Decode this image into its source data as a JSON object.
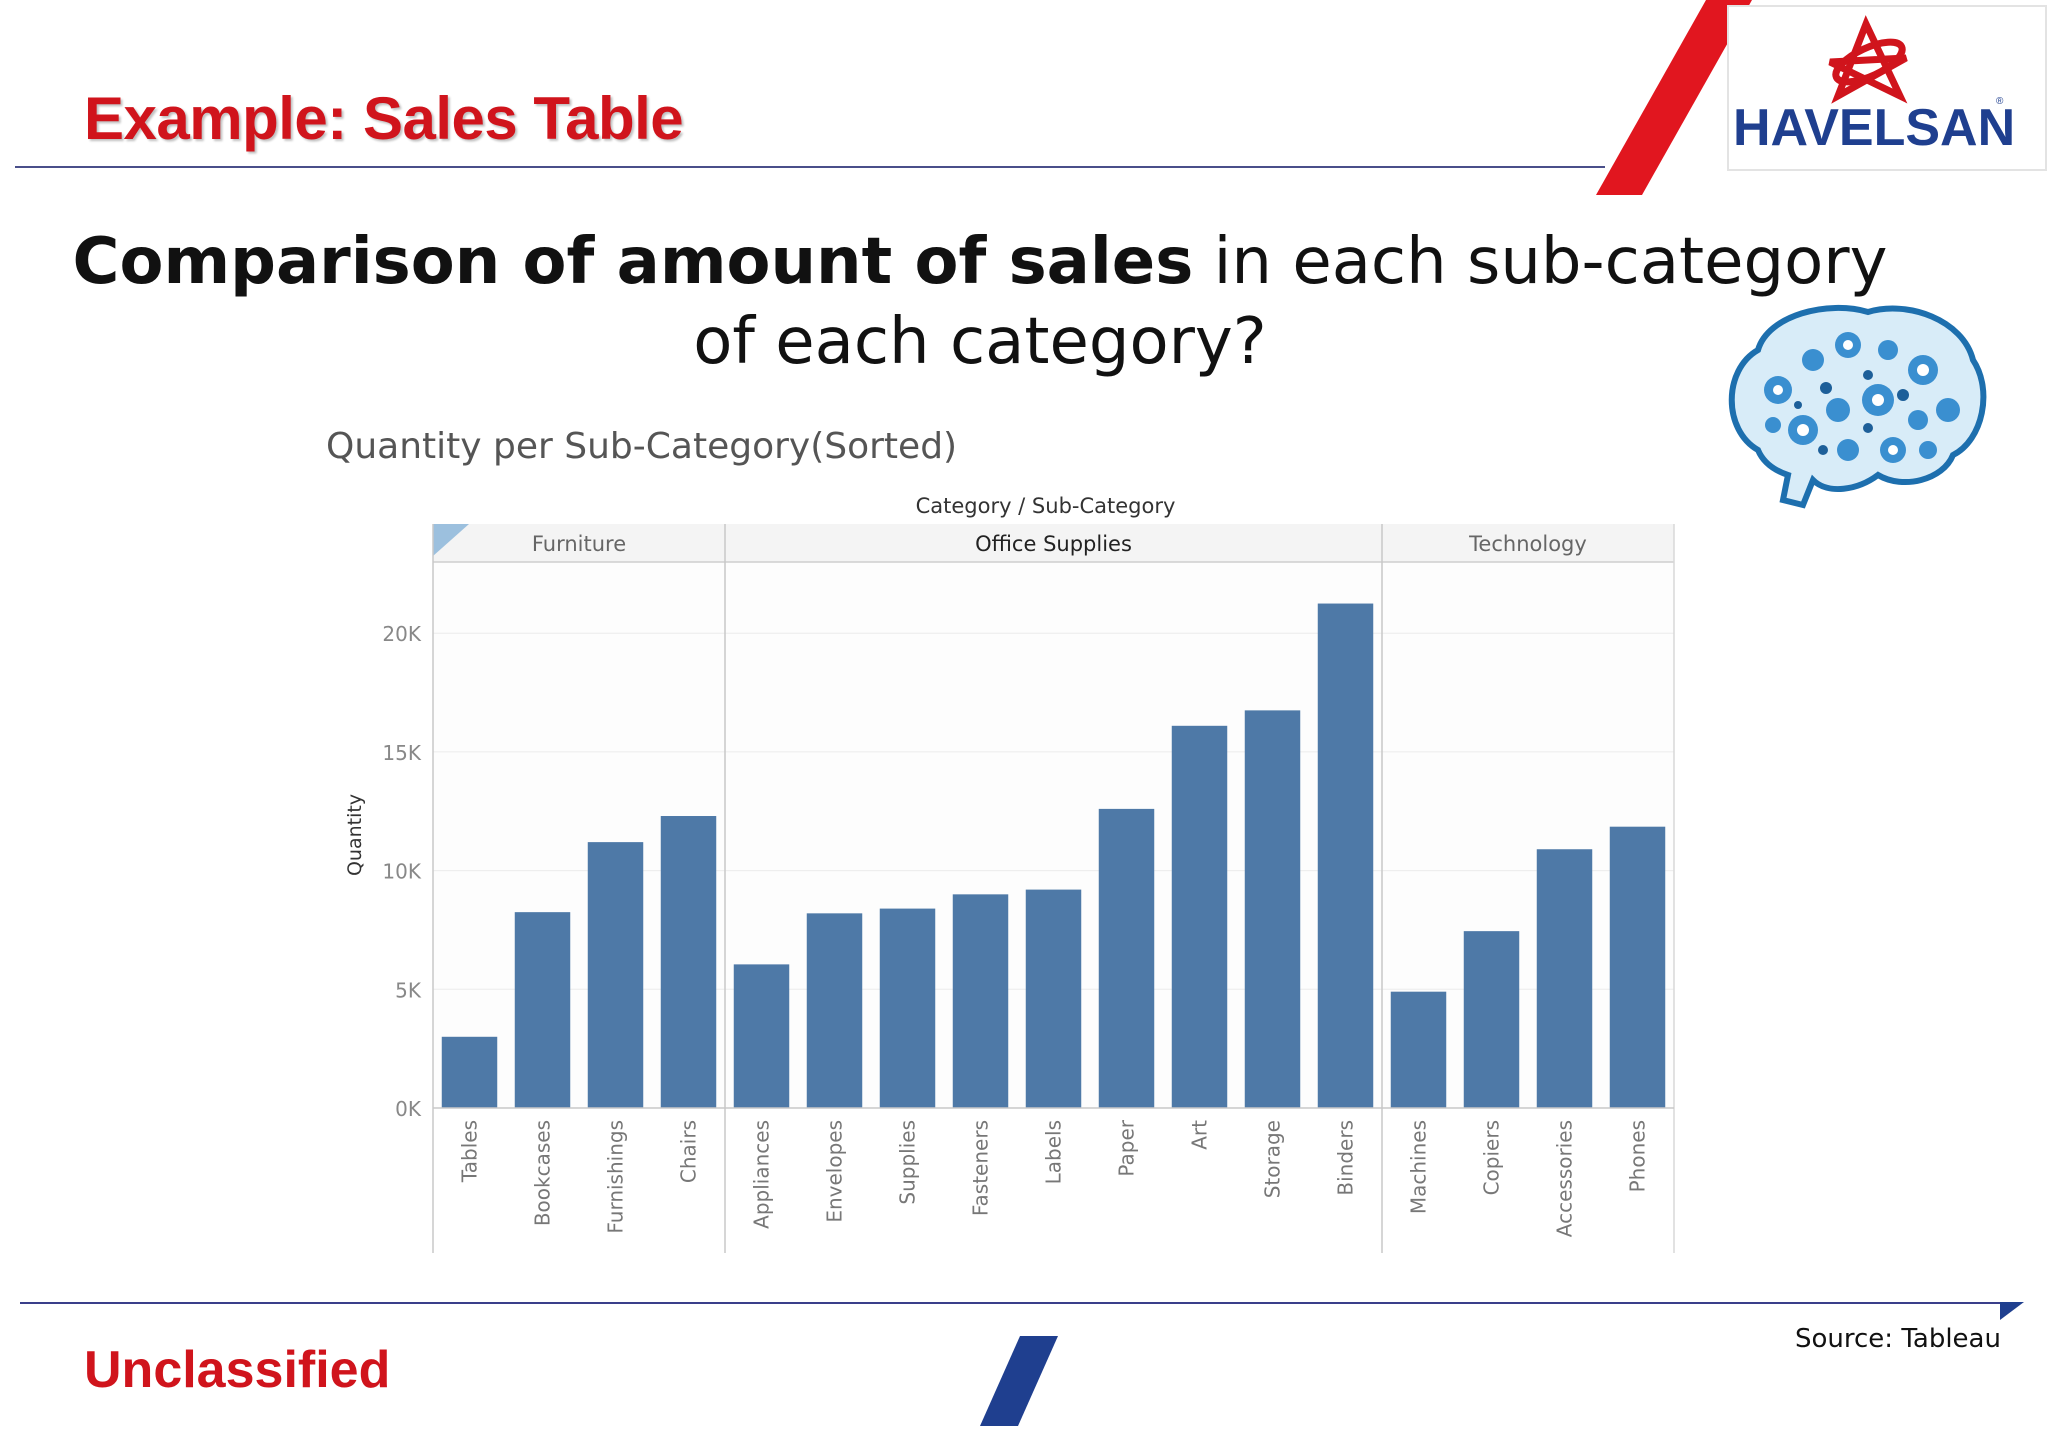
{
  "slide": {
    "title": "Example: Sales Table",
    "heading_bold": "Comparison of amount of sales",
    "heading_rest": " in each sub-category of each category?",
    "classification": "Unclassified",
    "source": "Source: Tableau",
    "logo_text": "HAVELSAN",
    "logo_registered": "®"
  },
  "colors": {
    "brand_red": "#d0141c",
    "navy": "#1f3f8f",
    "bar": "#4e79a7"
  },
  "icons": [
    "havelsan-star-logo",
    "gear-brain-icon"
  ],
  "chart_data": {
    "type": "bar",
    "title": "Quantity per Sub-Category(Sorted)",
    "header": "Category / Sub-Category",
    "ylabel": "Quantity",
    "ylim": [
      0,
      23000
    ],
    "yticks": [
      0,
      5000,
      10000,
      15000,
      20000
    ],
    "ytick_labels": [
      "0K",
      "5K",
      "10K",
      "15K",
      "20K"
    ],
    "grid": true,
    "groups": [
      {
        "name": "Furniture",
        "categories": [
          "Tables",
          "Bookcases",
          "Furnishings",
          "Chairs"
        ],
        "values": [
          3000,
          8250,
          11200,
          12300
        ]
      },
      {
        "name": "Office Supplies",
        "categories": [
          "Appliances",
          "Envelopes",
          "Supplies",
          "Fasteners",
          "Labels",
          "Paper",
          "Art",
          "Storage",
          "Binders"
        ],
        "values": [
          6050,
          8200,
          8400,
          9000,
          9200,
          12600,
          16100,
          16750,
          21250
        ]
      },
      {
        "name": "Technology",
        "categories": [
          "Machines",
          "Copiers",
          "Accessories",
          "Phones"
        ],
        "values": [
          4900,
          7450,
          10900,
          11850
        ]
      }
    ]
  }
}
